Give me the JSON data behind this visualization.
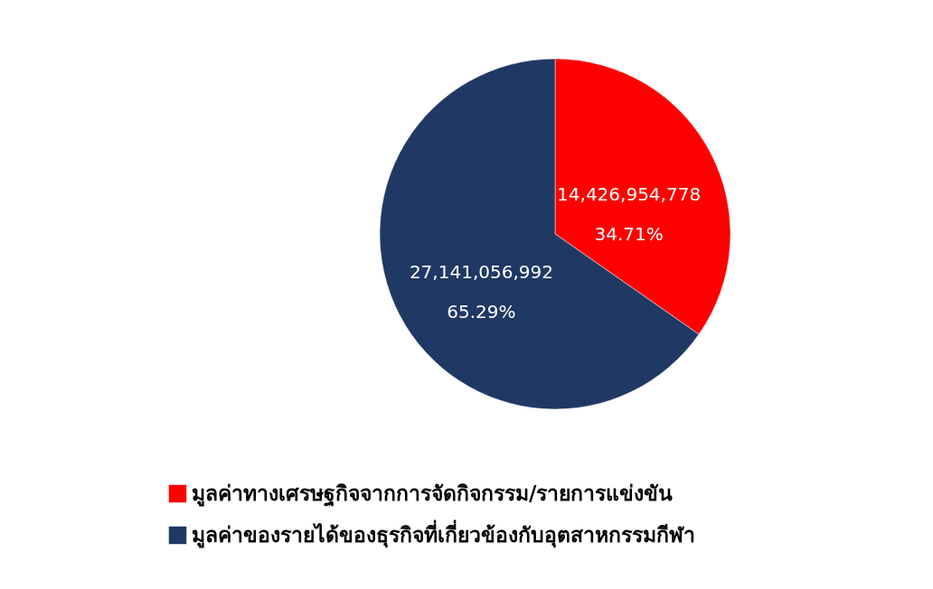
{
  "chart_data": {
    "type": "pie",
    "categories": [
      "มูลค่าทางเศรษฐกิจจากการจัดกิจกรรม/รายการแข่งขัน",
      "มูลค่าของรายได้ของธุรกิจที่เกี่ยวข้องกับอุตสาหกรรมกีฬา"
    ],
    "values": [
      14426954778,
      27141056992
    ],
    "colors": [
      "#ff0000",
      "#203864"
    ],
    "value_labels": [
      "14,426,954,778\n34.71%",
      "27,141,056,992\n65.29%"
    ],
    "legend": "bottom"
  }
}
